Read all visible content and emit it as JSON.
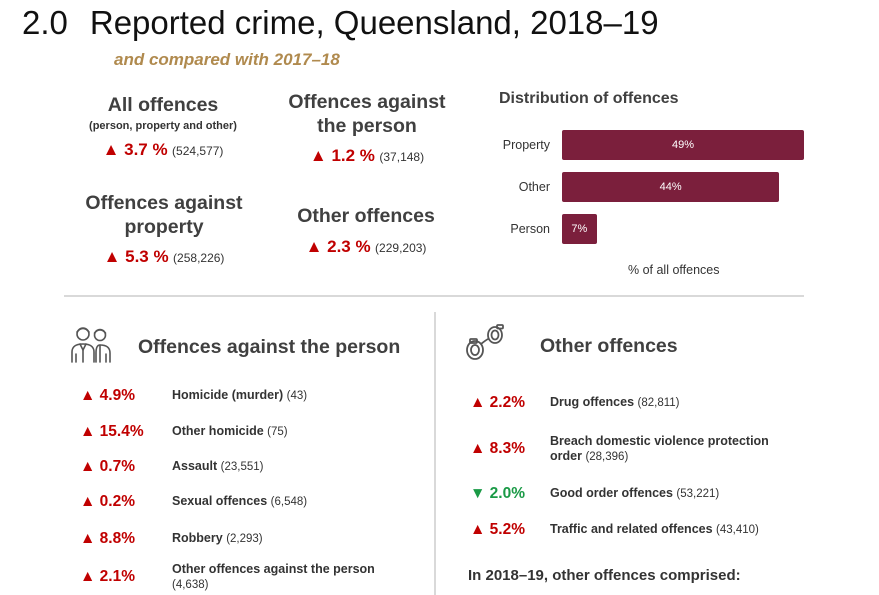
{
  "header": {
    "number": "2.0",
    "title": "Reported crime, Queensland, 2018–19",
    "subtitle": "and compared with 2017–18"
  },
  "summary": {
    "all": {
      "title": "All offences",
      "note": "(person, property and other)",
      "change": "▲ 3.7 %",
      "count": "(524,577)"
    },
    "person": {
      "title_line1": "Offences against",
      "title_line2": "the person",
      "change": "▲ 1.2 %",
      "count": "(37,148)"
    },
    "property": {
      "title_line1": "Offences against",
      "title_line2": "property",
      "change": "▲ 5.3 %",
      "count": "(258,226)"
    },
    "other": {
      "title": "Other offences",
      "change": "▲ 2.3 %",
      "count": "(229,203)"
    }
  },
  "chart_data": {
    "type": "bar",
    "orientation": "horizontal",
    "title": "Distribution of offences",
    "categories": [
      "Property",
      "Other",
      "Person"
    ],
    "values": [
      49,
      44,
      7
    ],
    "value_labels": [
      "49%",
      "44%",
      "7%"
    ],
    "xlabel": "% of all offences",
    "xlim": [
      0,
      49
    ],
    "grid": false,
    "color": "#7b1f3c"
  },
  "person_section": {
    "title": "Offences against the person",
    "icon": "people-icon",
    "items": [
      {
        "change": "▲ 4.9%",
        "label": "Homicide (murder)",
        "count": "(43)"
      },
      {
        "change": "▲ 15.4%",
        "label": "Other homicide",
        "count": "(75)"
      },
      {
        "change": "▲ 0.7%",
        "label": "Assault",
        "count": "(23,551)"
      },
      {
        "change": "▲ 0.2%",
        "label": "Sexual offences",
        "count": "(6,548)"
      },
      {
        "change": "▲ 8.8%",
        "label": "Robbery",
        "count": "(2,293)"
      },
      {
        "change": "▲ 2.1%",
        "label": "Other offences against the person",
        "count": "(4,638)"
      }
    ]
  },
  "other_section": {
    "title": "Other offences",
    "icon": "handcuffs-icon",
    "items": [
      {
        "change": "▲ 2.2%",
        "label": "Drug offences",
        "count": "(82,811)"
      },
      {
        "change": "▲ 8.3%",
        "label": "Breach domestic violence protection order",
        "count": "(28,396)"
      },
      {
        "change": "▼ 2.0%",
        "label": "Good order offences",
        "count": "(53,221)"
      },
      {
        "change": "▲ 5.2%",
        "label": "Traffic and related offences",
        "count": "(43,410)"
      }
    ],
    "footer": "In 2018–19, other offences comprised:"
  },
  "colors": {
    "increase": "#c00000",
    "decrease": "#1a9a46",
    "accent": "#b08a4e",
    "bar": "#7b1f3c"
  }
}
